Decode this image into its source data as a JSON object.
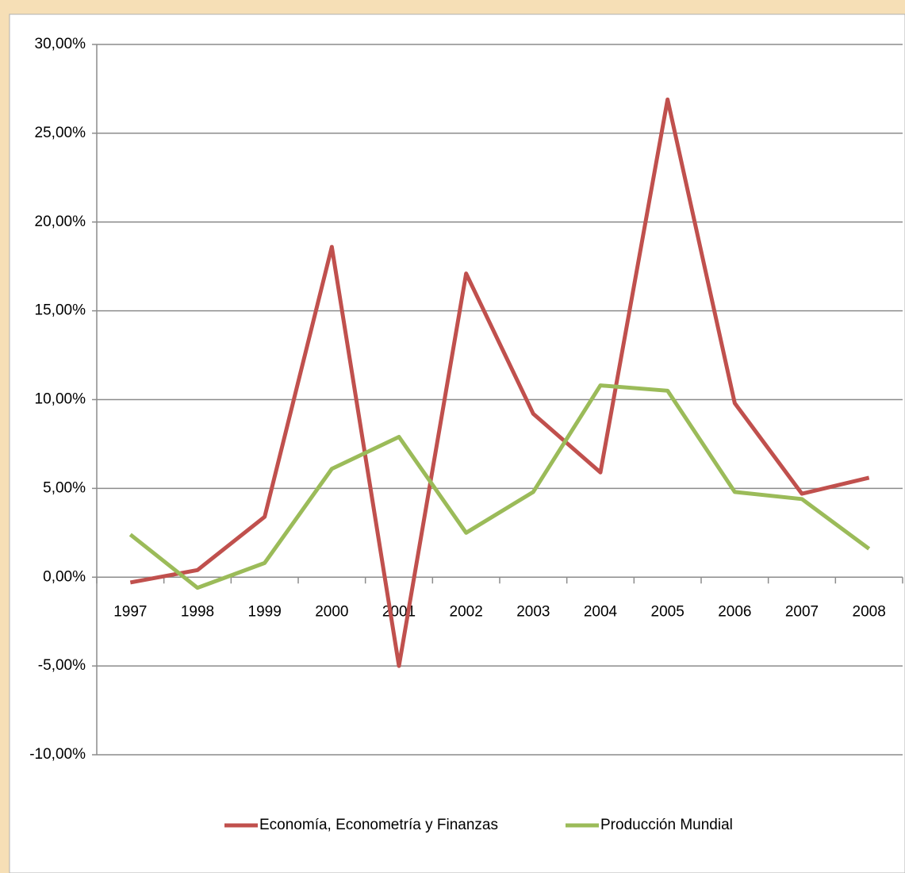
{
  "chart_data": {
    "type": "line",
    "categories": [
      "1997",
      "1998",
      "1999",
      "2000",
      "2001",
      "2002",
      "2003",
      "2004",
      "2005",
      "2006",
      "2007",
      "2008"
    ],
    "series": [
      {
        "name": "Economía, Econometría y Finanzas",
        "color": "#c0504d",
        "values": [
          -0.3,
          0.4,
          3.4,
          18.6,
          -5.0,
          17.1,
          9.2,
          5.9,
          26.9,
          9.8,
          4.7,
          5.6
        ]
      },
      {
        "name": "Producción Mundial",
        "color": "#9bbb59",
        "values": [
          2.4,
          -0.6,
          0.8,
          6.1,
          7.9,
          2.5,
          4.8,
          10.8,
          10.5,
          4.8,
          4.4,
          1.6
        ]
      }
    ],
    "ylim": [
      -10,
      30
    ],
    "yticks": [
      {
        "value": -10,
        "label": "-10,00%"
      },
      {
        "value": -5,
        "label": "-5,00%"
      },
      {
        "value": 0,
        "label": "0,00%"
      },
      {
        "value": 5,
        "label": "5,00%"
      },
      {
        "value": 10,
        "label": "10,00%"
      },
      {
        "value": 15,
        "label": "15,00%"
      },
      {
        "value": 20,
        "label": "20,00%"
      },
      {
        "value": 25,
        "label": "25,00%"
      },
      {
        "value": 30,
        "label": "30,00%"
      }
    ],
    "grid": true,
    "legend": "bottom"
  }
}
